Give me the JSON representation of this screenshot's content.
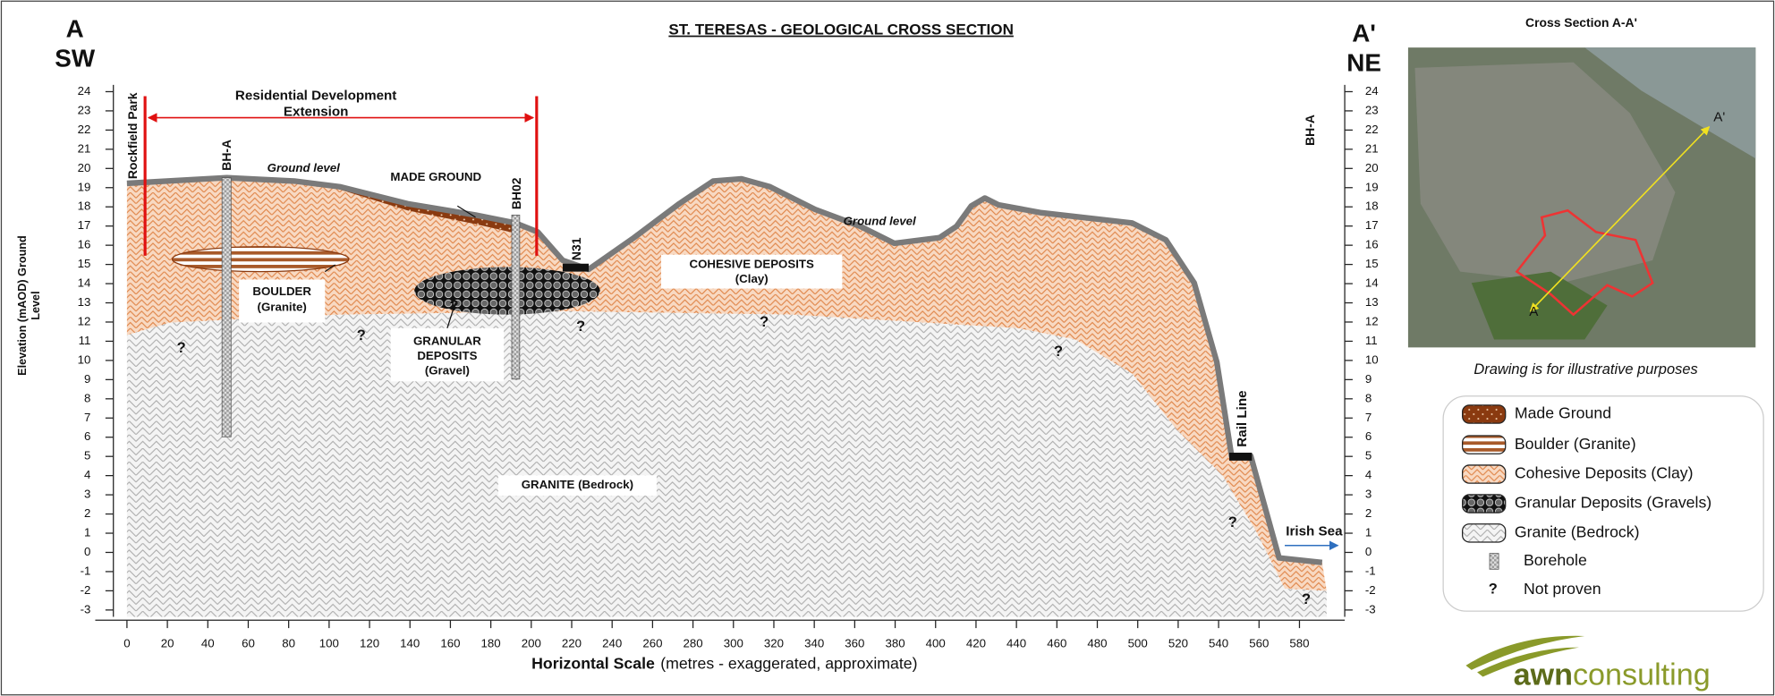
{
  "title": "ST. TERESAS - GEOLOGICAL CROSS SECTION",
  "left_marker": [
    "A",
    "SW"
  ],
  "right_marker": [
    "A'",
    "NE"
  ],
  "y_axis": {
    "label": [
      "Elevation (mAOD) Ground",
      "Level"
    ],
    "ticks": [
      24,
      23,
      22,
      21,
      20,
      19,
      18,
      17,
      16,
      15,
      14,
      13,
      12,
      11,
      10,
      9,
      8,
      7,
      6,
      5,
      4,
      3,
      2,
      1,
      0,
      -1,
      -2,
      -3
    ]
  },
  "x_axis": {
    "label_bold": "Horizontal Scale",
    "label_rest": "(metres - exaggerated, approximate)",
    "ticks": [
      0,
      20,
      40,
      60,
      80,
      100,
      120,
      140,
      160,
      180,
      200,
      220,
      240,
      260,
      280,
      300,
      320,
      340,
      360,
      380,
      400,
      420,
      440,
      460,
      480,
      500,
      520,
      540,
      560,
      580
    ]
  },
  "annotations": {
    "residential": [
      "Residential Development",
      "Extension"
    ],
    "rockfield": "Rockfield Park",
    "bh_a": "BH-A",
    "bh02": "BH02",
    "bh_a_right": "BH-A",
    "n31": "N31",
    "ground_level_1": "Ground level",
    "ground_level_2": "Ground level",
    "made_ground": "MADE GROUND",
    "boulder": [
      "BOULDER",
      "(Granite)"
    ],
    "granular": [
      "GRANULAR",
      "DEPOSITS",
      "(Gravel)"
    ],
    "cohesive": [
      "COHESIVE  DEPOSITS",
      "(Clay)"
    ],
    "granite": "GRANITE  (Bedrock)",
    "rail_line": "Rail Line",
    "irish_sea": "Irish Sea",
    "question_marks": [
      "?",
      "?",
      "?",
      "?",
      "?",
      "?",
      "?",
      "?"
    ]
  },
  "map": {
    "title": "Cross Section A-A'",
    "point_a": "A",
    "point_a_prime": "A'",
    "note": "Drawing is for illustrative purposes"
  },
  "legend": [
    {
      "label": "Made Ground"
    },
    {
      "label": "Boulder (Granite)"
    },
    {
      "label": "Cohesive Deposits (Clay)"
    },
    {
      "label": "Granular Deposits (Gravels)"
    },
    {
      "label": "Granite (Bedrock)"
    },
    {
      "label": "Borehole"
    },
    {
      "label": "Not proven",
      "symbol": "?"
    }
  ],
  "logo": {
    "brand_bold": "awn",
    "brand": "consulting"
  }
}
